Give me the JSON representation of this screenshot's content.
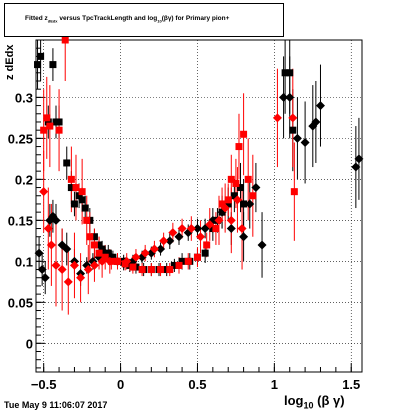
{
  "title": {
    "prefix": "Fitted  z",
    "sub": "dEdx",
    "mid": " versus TpcTrackLength and log",
    "sub2": "10",
    "suffix": "(βγ) for Primary pion+"
  },
  "footer": {
    "timestamp": "Tue May  9 11:06:07 2017"
  },
  "chart_data": {
    "type": "scatter",
    "xlabel": "log",
    "xlabel_sub": "10",
    "xlabel_suffix": "(β γ)",
    "ylabel": "z dEdx",
    "xlim": [
      -0.55,
      1.57
    ],
    "ylim": [
      -0.035,
      0.37
    ],
    "xticks": [
      -0.5,
      0,
      0.5,
      1,
      1.5
    ],
    "xtick_labels": [
      "−0.5",
      "0",
      "0.5",
      "1",
      "1.5"
    ],
    "yticks": [
      0,
      0.05,
      0.1,
      0.15,
      0.2,
      0.25,
      0.3
    ],
    "ytick_labels": [
      "0",
      "0.05",
      "0.1",
      "0.15",
      "0.2",
      "0.25",
      "0.3"
    ],
    "grid": true,
    "series": [
      {
        "color": "#000000",
        "marker": "square",
        "points": [
          {
            "x": -0.54,
            "y": 0.34,
            "err": 0.03
          },
          {
            "x": -0.52,
            "y": 0.35,
            "err": 0.03
          },
          {
            "x": -0.47,
            "y": 0.27,
            "err": 0.02
          },
          {
            "x": -0.44,
            "y": 0.34,
            "err": 0.02
          },
          {
            "x": -0.42,
            "y": 0.27,
            "err": 0.02
          },
          {
            "x": -0.4,
            "y": 0.27,
            "err": 0.02
          },
          {
            "x": -0.35,
            "y": 0.22,
            "err": 0.02
          },
          {
            "x": -0.32,
            "y": 0.19,
            "err": 0.02
          },
          {
            "x": -0.3,
            "y": 0.17,
            "err": 0.015
          },
          {
            "x": -0.27,
            "y": 0.18,
            "err": 0.015
          },
          {
            "x": -0.25,
            "y": 0.175,
            "err": 0.015
          },
          {
            "x": -0.23,
            "y": 0.165,
            "err": 0.015
          },
          {
            "x": -0.2,
            "y": 0.15,
            "err": 0.015
          },
          {
            "x": -0.17,
            "y": 0.13,
            "err": 0.01
          },
          {
            "x": -0.14,
            "y": 0.12,
            "err": 0.01
          },
          {
            "x": -0.12,
            "y": 0.115,
            "err": 0.01
          },
          {
            "x": -0.08,
            "y": 0.11,
            "err": 0.01
          },
          {
            "x": -0.05,
            "y": 0.105,
            "err": 0.008
          },
          {
            "x": -0.02,
            "y": 0.1,
            "err": 0.008
          },
          {
            "x": 0.02,
            "y": 0.1,
            "err": 0.008
          },
          {
            "x": 0.06,
            "y": 0.095,
            "err": 0.008
          },
          {
            "x": 0.1,
            "y": 0.093,
            "err": 0.008
          },
          {
            "x": 0.15,
            "y": 0.09,
            "err": 0.008
          },
          {
            "x": 0.2,
            "y": 0.09,
            "err": 0.008
          },
          {
            "x": 0.25,
            "y": 0.09,
            "err": 0.008
          },
          {
            "x": 0.3,
            "y": 0.09,
            "err": 0.008
          },
          {
            "x": 0.35,
            "y": 0.095,
            "err": 0.008
          },
          {
            "x": 0.4,
            "y": 0.1,
            "err": 0.01
          },
          {
            "x": 0.45,
            "y": 0.1,
            "err": 0.01
          },
          {
            "x": 0.5,
            "y": 0.105,
            "err": 0.01
          },
          {
            "x": 0.55,
            "y": 0.11,
            "err": 0.012
          },
          {
            "x": 0.6,
            "y": 0.14,
            "err": 0.015
          },
          {
            "x": 0.63,
            "y": 0.15,
            "err": 0.015
          },
          {
            "x": 0.66,
            "y": 0.16,
            "err": 0.02
          },
          {
            "x": 0.7,
            "y": 0.17,
            "err": 0.02
          },
          {
            "x": 0.74,
            "y": 0.18,
            "err": 0.02
          },
          {
            "x": 0.78,
            "y": 0.19,
            "err": 0.03
          },
          {
            "x": 0.8,
            "y": 0.17,
            "err": 0.03
          },
          {
            "x": 1.07,
            "y": 0.33,
            "err": 0.05
          },
          {
            "x": 1.1,
            "y": 0.33,
            "err": 0.05
          },
          {
            "x": 1.12,
            "y": 0.26,
            "err": 0.05
          }
        ]
      },
      {
        "color": "#000000",
        "marker": "diamond",
        "points": [
          {
            "x": -0.53,
            "y": 0.11,
            "err": 0.02
          },
          {
            "x": -0.51,
            "y": 0.09,
            "err": 0.02
          },
          {
            "x": -0.49,
            "y": 0.08,
            "err": 0.02
          },
          {
            "x": -0.46,
            "y": 0.15,
            "err": 0.02
          },
          {
            "x": -0.44,
            "y": 0.155,
            "err": 0.02
          },
          {
            "x": -0.42,
            "y": 0.15,
            "err": 0.02
          },
          {
            "x": -0.38,
            "y": 0.12,
            "err": 0.02
          },
          {
            "x": -0.35,
            "y": 0.115,
            "err": 0.02
          },
          {
            "x": -0.3,
            "y": 0.1,
            "err": 0.015
          },
          {
            "x": -0.26,
            "y": 0.085,
            "err": 0.015
          },
          {
            "x": -0.22,
            "y": 0.095,
            "err": 0.01
          },
          {
            "x": -0.18,
            "y": 0.1,
            "err": 0.01
          },
          {
            "x": -0.14,
            "y": 0.105,
            "err": 0.01
          },
          {
            "x": -0.1,
            "y": 0.11,
            "err": 0.008
          },
          {
            "x": -0.06,
            "y": 0.105,
            "err": 0.008
          },
          {
            "x": -0.02,
            "y": 0.1,
            "err": 0.008
          },
          {
            "x": 0.02,
            "y": 0.097,
            "err": 0.008
          },
          {
            "x": 0.08,
            "y": 0.1,
            "err": 0.008
          },
          {
            "x": 0.14,
            "y": 0.105,
            "err": 0.008
          },
          {
            "x": 0.2,
            "y": 0.11,
            "err": 0.008
          },
          {
            "x": 0.26,
            "y": 0.115,
            "err": 0.008
          },
          {
            "x": 0.32,
            "y": 0.125,
            "err": 0.01
          },
          {
            "x": 0.38,
            "y": 0.13,
            "err": 0.01
          },
          {
            "x": 0.44,
            "y": 0.135,
            "err": 0.01
          },
          {
            "x": 0.5,
            "y": 0.14,
            "err": 0.012
          },
          {
            "x": 0.55,
            "y": 0.14,
            "err": 0.012
          },
          {
            "x": 0.6,
            "y": 0.15,
            "err": 0.015
          },
          {
            "x": 0.66,
            "y": 0.16,
            "err": 0.02
          },
          {
            "x": 0.72,
            "y": 0.14,
            "err": 0.02
          },
          {
            "x": 0.8,
            "y": 0.13,
            "err": 0.03
          },
          {
            "x": 0.84,
            "y": 0.17,
            "err": 0.03
          },
          {
            "x": 0.88,
            "y": 0.19,
            "err": 0.03
          },
          {
            "x": 0.92,
            "y": 0.12,
            "err": 0.04
          },
          {
            "x": 1.06,
            "y": 0.3,
            "err": 0.05
          },
          {
            "x": 1.1,
            "y": 0.3,
            "err": 0.05
          },
          {
            "x": 1.15,
            "y": 0.25,
            "err": 0.05
          },
          {
            "x": 1.2,
            "y": 0.245,
            "err": 0.05
          },
          {
            "x": 1.25,
            "y": 0.265,
            "err": 0.05
          },
          {
            "x": 1.27,
            "y": 0.27,
            "err": 0.05
          },
          {
            "x": 1.3,
            "y": 0.29,
            "err": 0.05
          },
          {
            "x": 1.53,
            "y": 0.215,
            "err": 0.05
          },
          {
            "x": 1.55,
            "y": 0.225,
            "err": 0.05
          }
        ]
      },
      {
        "color": "#ff0000",
        "marker": "square",
        "points": [
          {
            "x": -0.5,
            "y": 0.26,
            "err": 0.05
          },
          {
            "x": -0.48,
            "y": 0.275,
            "err": 0.05
          },
          {
            "x": -0.46,
            "y": 0.265,
            "err": 0.05
          },
          {
            "x": -0.4,
            "y": 0.26,
            "err": 0.05
          },
          {
            "x": -0.36,
            "y": 0.37,
            "err": 0.05
          },
          {
            "x": -0.32,
            "y": 0.2,
            "err": 0.04
          },
          {
            "x": -0.29,
            "y": 0.19,
            "err": 0.04
          },
          {
            "x": -0.25,
            "y": 0.185,
            "err": 0.04
          },
          {
            "x": -0.22,
            "y": 0.15,
            "err": 0.03
          },
          {
            "x": -0.2,
            "y": 0.13,
            "err": 0.03
          },
          {
            "x": -0.17,
            "y": 0.12,
            "err": 0.02
          },
          {
            "x": -0.14,
            "y": 0.11,
            "err": 0.02
          },
          {
            "x": -0.1,
            "y": 0.105,
            "err": 0.015
          },
          {
            "x": -0.06,
            "y": 0.1,
            "err": 0.01
          },
          {
            "x": -0.02,
            "y": 0.1,
            "err": 0.01
          },
          {
            "x": 0.03,
            "y": 0.097,
            "err": 0.008
          },
          {
            "x": 0.08,
            "y": 0.093,
            "err": 0.008
          },
          {
            "x": 0.14,
            "y": 0.09,
            "err": 0.008
          },
          {
            "x": 0.2,
            "y": 0.09,
            "err": 0.008
          },
          {
            "x": 0.26,
            "y": 0.09,
            "err": 0.008
          },
          {
            "x": 0.32,
            "y": 0.09,
            "err": 0.008
          },
          {
            "x": 0.38,
            "y": 0.095,
            "err": 0.01
          },
          {
            "x": 0.44,
            "y": 0.1,
            "err": 0.01
          },
          {
            "x": 0.5,
            "y": 0.105,
            "err": 0.012
          },
          {
            "x": 0.56,
            "y": 0.12,
            "err": 0.015
          },
          {
            "x": 0.62,
            "y": 0.14,
            "err": 0.02
          },
          {
            "x": 0.66,
            "y": 0.17,
            "err": 0.02
          },
          {
            "x": 0.7,
            "y": 0.175,
            "err": 0.02
          },
          {
            "x": 0.72,
            "y": 0.2,
            "err": 0.03
          },
          {
            "x": 0.75,
            "y": 0.195,
            "err": 0.03
          },
          {
            "x": 0.77,
            "y": 0.24,
            "err": 0.04
          },
          {
            "x": 0.8,
            "y": 0.255,
            "err": 0.05
          },
          {
            "x": 0.83,
            "y": 0.2,
            "err": 0.05
          },
          {
            "x": 0.86,
            "y": 0.18,
            "err": 0.05
          },
          {
            "x": 1.13,
            "y": 0.185,
            "err": 0.06
          }
        ]
      },
      {
        "color": "#ff0000",
        "marker": "diamond",
        "points": [
          {
            "x": -0.5,
            "y": 0.185,
            "err": 0.05
          },
          {
            "x": -0.47,
            "y": 0.14,
            "err": 0.05
          },
          {
            "x": -0.45,
            "y": 0.12,
            "err": 0.05
          },
          {
            "x": -0.42,
            "y": 0.095,
            "err": 0.05
          },
          {
            "x": -0.38,
            "y": 0.09,
            "err": 0.05
          },
          {
            "x": -0.34,
            "y": 0.075,
            "err": 0.04
          },
          {
            "x": -0.3,
            "y": 0.095,
            "err": 0.04
          },
          {
            "x": -0.26,
            "y": 0.08,
            "err": 0.03
          },
          {
            "x": -0.21,
            "y": 0.09,
            "err": 0.03
          },
          {
            "x": -0.17,
            "y": 0.095,
            "err": 0.02
          },
          {
            "x": -0.12,
            "y": 0.1,
            "err": 0.02
          },
          {
            "x": -0.07,
            "y": 0.1,
            "err": 0.015
          },
          {
            "x": -0.02,
            "y": 0.1,
            "err": 0.01
          },
          {
            "x": 0.04,
            "y": 0.1,
            "err": 0.01
          },
          {
            "x": 0.1,
            "y": 0.105,
            "err": 0.01
          },
          {
            "x": 0.16,
            "y": 0.11,
            "err": 0.01
          },
          {
            "x": 0.22,
            "y": 0.115,
            "err": 0.01
          },
          {
            "x": 0.28,
            "y": 0.125,
            "err": 0.01
          },
          {
            "x": 0.34,
            "y": 0.135,
            "err": 0.012
          },
          {
            "x": 0.4,
            "y": 0.14,
            "err": 0.012
          },
          {
            "x": 0.46,
            "y": 0.14,
            "err": 0.015
          },
          {
            "x": 0.52,
            "y": 0.13,
            "err": 0.02
          },
          {
            "x": 0.58,
            "y": 0.145,
            "err": 0.02
          },
          {
            "x": 0.64,
            "y": 0.15,
            "err": 0.03
          },
          {
            "x": 0.68,
            "y": 0.165,
            "err": 0.03
          },
          {
            "x": 0.72,
            "y": 0.15,
            "err": 0.04
          },
          {
            "x": 0.76,
            "y": 0.175,
            "err": 0.04
          },
          {
            "x": 0.79,
            "y": 0.14,
            "err": 0.05
          },
          {
            "x": 1.02,
            "y": 0.275,
            "err": 0.06
          },
          {
            "x": 1.12,
            "y": 0.275,
            "err": 0.06
          }
        ]
      }
    ]
  }
}
